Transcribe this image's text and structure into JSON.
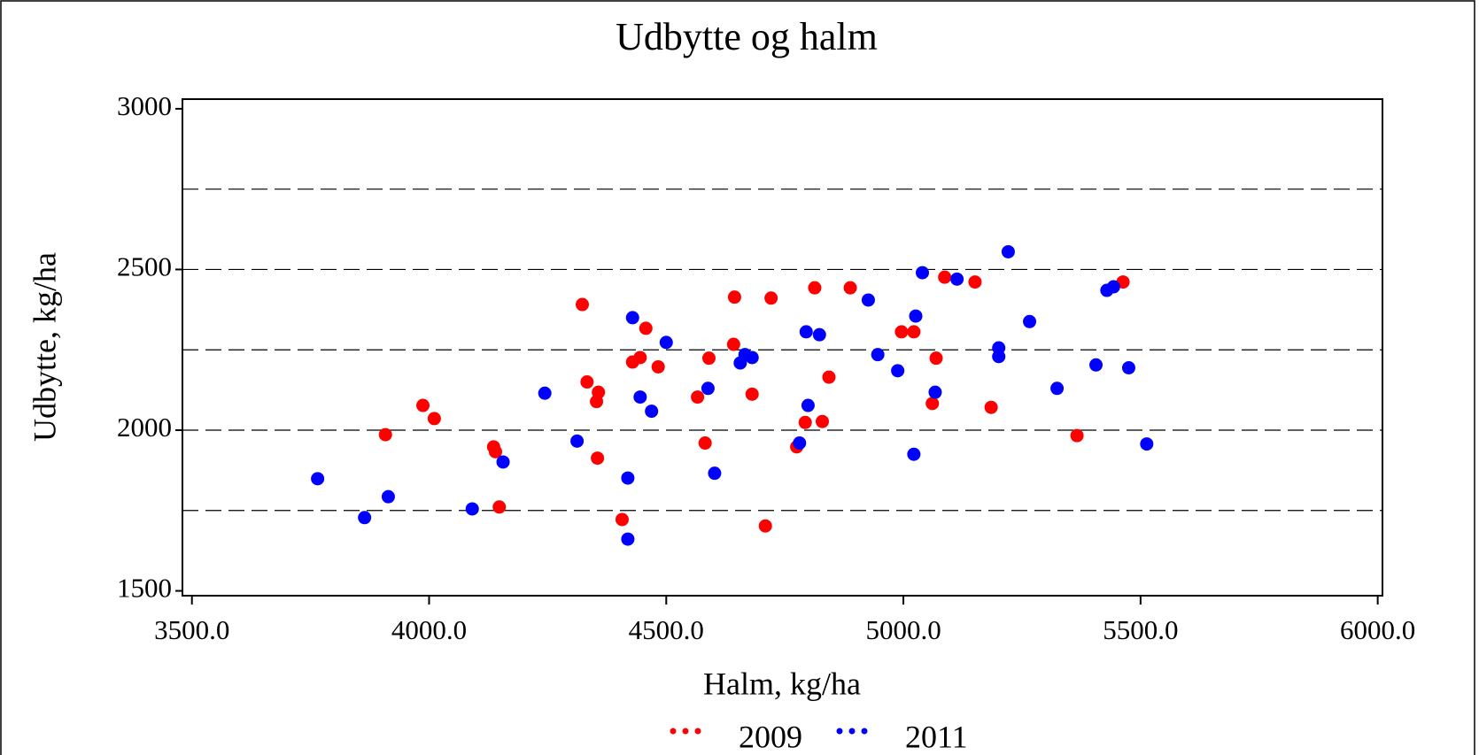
{
  "chart_data": {
    "type": "scatter",
    "title": "Udbytte og halm",
    "x_label": "Halm, kg/ha",
    "y_label": "Udbytte, kg/ha",
    "xlim": [
      3480,
      6010
    ],
    "ylim": [
      1485,
      3030
    ],
    "xticks": [
      {
        "value": 3500,
        "label": "3500.0"
      },
      {
        "value": 4000,
        "label": "4000.0"
      },
      {
        "value": 4500,
        "label": "4500.0"
      },
      {
        "value": 5000,
        "label": "5000.0"
      },
      {
        "value": 5500,
        "label": "5500.0"
      },
      {
        "value": 6000,
        "label": "6000.0"
      }
    ],
    "yticks": [
      1500,
      2000,
      2500,
      3000
    ],
    "grid_lines": [
      1750,
      2000,
      2250,
      2500,
      2750
    ],
    "legend": "bottom",
    "series": [
      {
        "name": "2009",
        "color": "#ff0000",
        "x": [
          3908,
          3987,
          4011,
          4136,
          4140,
          4148,
          4323,
          4333,
          4357,
          4353,
          4355,
          4407,
          4429,
          4445,
          4457,
          4483,
          4566,
          4582,
          4590,
          4642,
          4644,
          4681,
          4709,
          4721,
          4775,
          4793,
          4813,
          4829,
          4843,
          4888,
          4996,
          5022,
          5069,
          5061,
          5087,
          5151,
          5185,
          5366,
          5463
        ],
        "values": [
          1986,
          2077,
          2036,
          1948,
          1933,
          1761,
          2391,
          2150,
          2118,
          2089,
          1913,
          1722,
          2212,
          2226,
          2317,
          2197,
          2103,
          1960,
          2224,
          2267,
          2414,
          2112,
          1702,
          2411,
          1948,
          2024,
          2443,
          2027,
          2165,
          2443,
          2306,
          2306,
          2224,
          2083,
          2476,
          2461,
          2071,
          1983,
          2461
        ]
      },
      {
        "name": "2011",
        "color": "#0000ff",
        "x": [
          3765,
          3864,
          3914,
          4091,
          4156,
          4244,
          4312,
          4419,
          4419,
          4429,
          4445,
          4469,
          4500,
          4588,
          4602,
          4656,
          4666,
          4681,
          4781,
          4795,
          4799,
          4823,
          4926,
          4946,
          4988,
          5022,
          5026,
          5040,
          5067,
          5113,
          5201,
          5201,
          5221,
          5266,
          5324,
          5406,
          5429,
          5443,
          5475,
          5513
        ],
        "values": [
          1849,
          1728,
          1793,
          1755,
          1901,
          2115,
          1966,
          1661,
          1851,
          2350,
          2103,
          2059,
          2273,
          2130,
          1866,
          2209,
          2235,
          2226,
          1960,
          2306,
          2077,
          2297,
          2405,
          2235,
          2185,
          1925,
          2355,
          2490,
          2118,
          2470,
          2256,
          2229,
          2555,
          2338,
          2130,
          2203,
          2435,
          2446,
          2194,
          1957
        ]
      }
    ]
  }
}
